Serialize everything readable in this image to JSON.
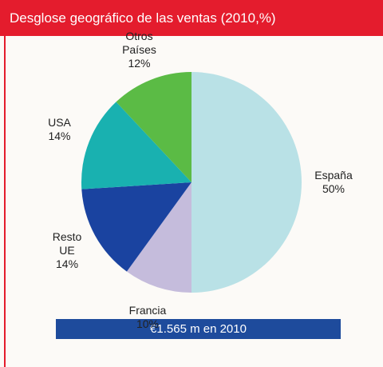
{
  "chart_data": {
    "type": "pie",
    "title": "Desglose geográfico de las ventas (2010,%)",
    "categories": [
      "España",
      "Francia",
      "Resto UE",
      "USA",
      "Otros Países"
    ],
    "values": [
      50,
      10,
      14,
      14,
      12
    ],
    "value_labels": [
      "50%",
      "10%",
      "14%",
      "14%",
      "12%"
    ],
    "colors": [
      "#b9e1e6",
      "#c5bcdc",
      "#1a43a0",
      "#19b1b0",
      "#5bbb45"
    ],
    "footer": "€1.565 m en 2010"
  }
}
